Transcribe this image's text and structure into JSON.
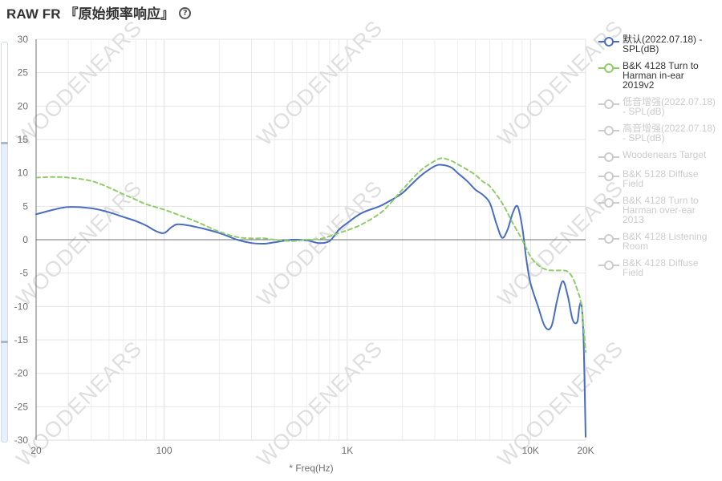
{
  "header": {
    "title": "RAW FR 『原始频率响应』",
    "help_icon": "question-circle-icon"
  },
  "watermark": "WOODENEARS",
  "legend_items": [
    {
      "label": "默认(2022.07.18) -\nSPL(dB)",
      "color": "#4a6cc1",
      "active": true
    },
    {
      "label": "B&K 4128 Turn to\nHarman in-ear\n2019v2",
      "color": "#8fcc6a",
      "active": true
    },
    {
      "label": "低音增强(2022.07.18)\n- SPL(dB)",
      "color": "#cccccc",
      "active": false
    },
    {
      "label": "高音增强(2022.07.18)\n- SPL(dB)",
      "color": "#cccccc",
      "active": false
    },
    {
      "label": "Woodenears Target",
      "color": "#cccccc",
      "active": false
    },
    {
      "label": "B&K 5128 Diffuse\nField",
      "color": "#cccccc",
      "active": false
    },
    {
      "label": "B&K 4128 Turn to\nHarman over-ear\n2013",
      "color": "#cccccc",
      "active": false
    },
    {
      "label": "B&K 4128 Listening\nRoom",
      "color": "#cccccc",
      "active": false
    },
    {
      "label": "B&K 4128 Diffuse\nField",
      "color": "#cccccc",
      "active": false
    }
  ],
  "chart_data": {
    "type": "line",
    "xlabel": "* Freq(Hz)",
    "x_scale": "log",
    "xlim": [
      20,
      20000
    ],
    "ylim": [
      -30,
      30
    ],
    "x_tick_labels": [
      {
        "value": 20,
        "label": "20"
      },
      {
        "value": 100,
        "label": "100"
      },
      {
        "value": 1000,
        "label": "1K"
      },
      {
        "value": 10000,
        "label": "10K"
      },
      {
        "value": 20000,
        "label": "20K"
      }
    ],
    "y_ticks": [
      30,
      25,
      20,
      15,
      10,
      5,
      0,
      -5,
      -10,
      -15,
      -20,
      -25,
      -30
    ],
    "grid": true,
    "series": [
      {
        "name": "默认(2022.07.18) - SPL(dB)",
        "color": "#4a6cc1",
        "dash": false,
        "points": [
          [
            20,
            3.8
          ],
          [
            25,
            4.5
          ],
          [
            30,
            4.9
          ],
          [
            40,
            4.7
          ],
          [
            50,
            4.1
          ],
          [
            60,
            3.4
          ],
          [
            70,
            2.8
          ],
          [
            80,
            2.1
          ],
          [
            90,
            1.3
          ],
          [
            100,
            1.0
          ],
          [
            110,
            1.9
          ],
          [
            120,
            2.3
          ],
          [
            150,
            1.9
          ],
          [
            200,
            1.0
          ],
          [
            250,
            0.0
          ],
          [
            300,
            -0.5
          ],
          [
            350,
            -0.6
          ],
          [
            400,
            -0.4
          ],
          [
            500,
            0.0
          ],
          [
            600,
            -0.1
          ],
          [
            700,
            -0.5
          ],
          [
            800,
            -0.2
          ],
          [
            900,
            1.5
          ],
          [
            1000,
            2.5
          ],
          [
            1200,
            4.0
          ],
          [
            1500,
            5.0
          ],
          [
            1700,
            5.8
          ],
          [
            2000,
            7.0
          ],
          [
            2500,
            9.5
          ],
          [
            3000,
            11.0
          ],
          [
            3300,
            11.2
          ],
          [
            3700,
            10.8
          ],
          [
            4000,
            10.0
          ],
          [
            4500,
            8.8
          ],
          [
            5000,
            7.5
          ],
          [
            5500,
            6.7
          ],
          [
            6000,
            5.5
          ],
          [
            6500,
            2.5
          ],
          [
            7000,
            0.3
          ],
          [
            7500,
            1.5
          ],
          [
            8000,
            4.0
          ],
          [
            8500,
            5.0
          ],
          [
            9000,
            2.0
          ],
          [
            9500,
            -3.0
          ],
          [
            10000,
            -6.5
          ],
          [
            11000,
            -10.0
          ],
          [
            12000,
            -13.0
          ],
          [
            13000,
            -13.0
          ],
          [
            14000,
            -9.0
          ],
          [
            15000,
            -6.2
          ],
          [
            16000,
            -8.5
          ],
          [
            17000,
            -12.0
          ],
          [
            18000,
            -12.3
          ],
          [
            18500,
            -10.0
          ],
          [
            19000,
            -9.8
          ],
          [
            19500,
            -15.0
          ],
          [
            20000,
            -29.5
          ]
        ]
      },
      {
        "name": "B&K 4128 Turn to Harman in-ear 2019v2",
        "color": "#8fcc6a",
        "dash": true,
        "points": [
          [
            20,
            9.3
          ],
          [
            25,
            9.4
          ],
          [
            30,
            9.3
          ],
          [
            40,
            8.8
          ],
          [
            50,
            7.8
          ],
          [
            60,
            6.8
          ],
          [
            70,
            6.0
          ],
          [
            80,
            5.3
          ],
          [
            100,
            4.5
          ],
          [
            120,
            3.7
          ],
          [
            150,
            2.7
          ],
          [
            200,
            1.2
          ],
          [
            250,
            0.4
          ],
          [
            300,
            0.2
          ],
          [
            350,
            0.2
          ],
          [
            400,
            0.0
          ],
          [
            500,
            -0.2
          ],
          [
            600,
            0.0
          ],
          [
            700,
            0.1
          ],
          [
            800,
            0.5
          ],
          [
            900,
            1.0
          ],
          [
            1000,
            1.4
          ],
          [
            1200,
            2.3
          ],
          [
            1500,
            3.9
          ],
          [
            1700,
            5.3
          ],
          [
            2000,
            7.5
          ],
          [
            2500,
            10.3
          ],
          [
            3000,
            11.8
          ],
          [
            3300,
            12.2
          ],
          [
            3700,
            11.8
          ],
          [
            4000,
            11.3
          ],
          [
            4500,
            10.5
          ],
          [
            5000,
            9.7
          ],
          [
            5500,
            8.7
          ],
          [
            6000,
            8.0
          ],
          [
            7000,
            5.5
          ],
          [
            8000,
            2.5
          ],
          [
            9000,
            0.0
          ],
          [
            10000,
            -2.5
          ],
          [
            11000,
            -3.8
          ],
          [
            12000,
            -4.4
          ],
          [
            13000,
            -4.6
          ],
          [
            15000,
            -4.6
          ],
          [
            16000,
            -4.8
          ],
          [
            17000,
            -5.7
          ],
          [
            18000,
            -7.5
          ],
          [
            19000,
            -10.0
          ],
          [
            20000,
            -16.8
          ]
        ]
      }
    ]
  }
}
